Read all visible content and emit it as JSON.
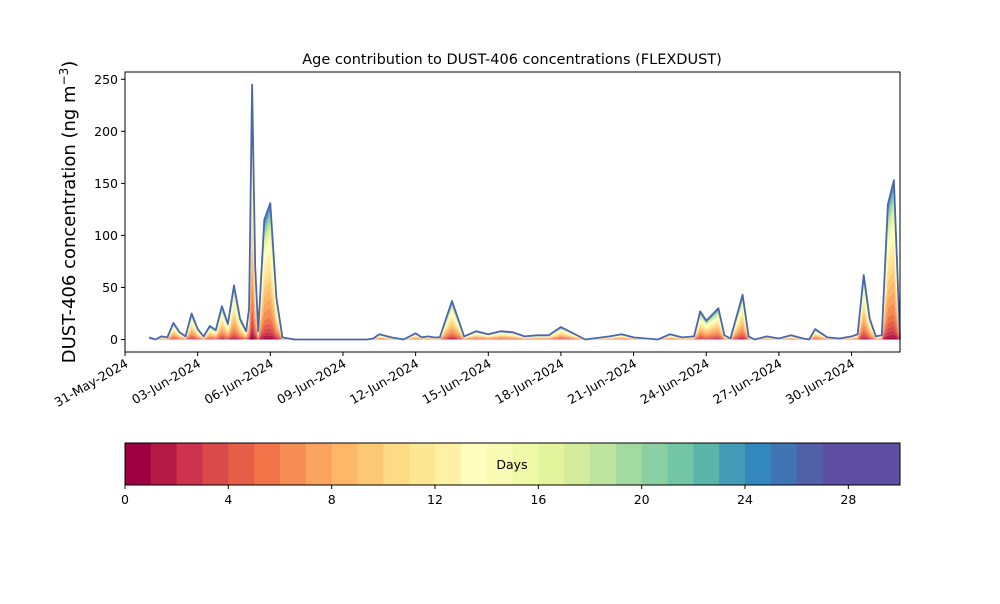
{
  "chart_data": {
    "type": "area",
    "title": "Age contribution to DUST-406 concentrations (FLEXDUST)",
    "ylabel_main": "DUST-406 concentration (ng m",
    "ylabel_sup": "−3",
    "ylabel_close": ")",
    "xlabel": "",
    "stacked": true,
    "grid": false,
    "x_start": "2024-05-31",
    "x_end": "2024-07-02",
    "ylim": [
      -12,
      257
    ],
    "yticks": [
      0,
      50,
      100,
      150,
      200,
      250
    ],
    "xtick_labels": [
      "31-May-2024",
      "03-Jun-2024",
      "06-Jun-2024",
      "09-Jun-2024",
      "12-Jun-2024",
      "15-Jun-2024",
      "18-Jun-2024",
      "21-Jun-2024",
      "24-Jun-2024",
      "27-Jun-2024",
      "30-Jun-2024"
    ],
    "x": [
      "2024-06-01 00:00",
      "2024-06-01 06:00",
      "2024-06-01 12:00",
      "2024-06-01 18:00",
      "2024-06-02 00:00",
      "2024-06-02 06:00",
      "2024-06-02 12:00",
      "2024-06-02 18:00",
      "2024-06-03 00:00",
      "2024-06-03 06:00",
      "2024-06-03 12:00",
      "2024-06-03 18:00",
      "2024-06-04 00:00",
      "2024-06-04 06:00",
      "2024-06-04 12:00",
      "2024-06-04 18:00",
      "2024-06-05 00:00",
      "2024-06-05 03:00",
      "2024-06-05 06:00",
      "2024-06-05 09:00",
      "2024-06-05 12:00",
      "2024-06-05 18:00",
      "2024-06-06 00:00",
      "2024-06-06 06:00",
      "2024-06-06 12:00",
      "2024-06-07 00:00",
      "2024-06-08 00:00",
      "2024-06-08 12:00",
      "2024-06-09 00:00",
      "2024-06-10 00:00",
      "2024-06-10 06:00",
      "2024-06-10 12:00",
      "2024-06-11 00:00",
      "2024-06-11 12:00",
      "2024-06-12 00:00",
      "2024-06-12 06:00",
      "2024-06-12 12:00",
      "2024-06-12 18:00",
      "2024-06-13 00:00",
      "2024-06-13 12:00",
      "2024-06-14 00:00",
      "2024-06-14 12:00",
      "2024-06-15 00:00",
      "2024-06-15 12:00",
      "2024-06-16 00:00",
      "2024-06-16 12:00",
      "2024-06-17 00:00",
      "2024-06-17 12:00",
      "2024-06-18 00:00",
      "2024-06-19 00:00",
      "2024-06-20 00:00",
      "2024-06-20 12:00",
      "2024-06-21 00:00",
      "2024-06-22 00:00",
      "2024-06-22 12:00",
      "2024-06-23 00:00",
      "2024-06-23 12:00",
      "2024-06-23 18:00",
      "2024-06-24 00:00",
      "2024-06-24 12:00",
      "2024-06-24 18:00",
      "2024-06-25 00:00",
      "2024-06-25 12:00",
      "2024-06-25 18:00",
      "2024-06-26 00:00",
      "2024-06-26 12:00",
      "2024-06-27 00:00",
      "2024-06-27 12:00",
      "2024-06-28 00:00",
      "2024-06-28 06:00",
      "2024-06-28 12:00",
      "2024-06-29 00:00",
      "2024-06-29 12:00",
      "2024-06-30 00:00",
      "2024-06-30 06:00",
      "2024-06-30 12:00",
      "2024-06-30 18:00",
      "2024-07-01 00:00",
      "2024-07-01 06:00",
      "2024-07-01 12:00",
      "2024-07-01 18:00",
      "2024-07-02 00:00"
    ],
    "total": [
      2,
      0,
      3,
      2,
      16,
      7,
      3,
      25,
      10,
      3,
      13,
      9,
      32,
      15,
      52,
      20,
      8,
      30,
      245,
      70,
      8,
      115,
      131,
      40,
      2,
      0,
      0,
      0,
      0,
      0,
      1,
      5,
      2,
      0,
      6,
      2,
      3,
      2,
      2,
      37,
      3,
      8,
      5,
      8,
      7,
      3,
      4,
      4,
      12,
      0,
      3,
      5,
      2,
      0,
      5,
      2,
      3,
      27,
      18,
      30,
      4,
      1,
      43,
      3,
      0,
      3,
      1,
      4,
      1,
      0,
      10,
      2,
      1,
      3,
      5,
      62,
      20,
      3,
      4,
      130,
      153,
      0
    ],
    "colorbar": {
      "label": "Days",
      "ticks": [
        0,
        4,
        8,
        12,
        16,
        20,
        24,
        28
      ],
      "min": 0,
      "max": 30,
      "colors": [
        "#9e0142",
        "#b61a47",
        "#cd334c",
        "#db4a4a",
        "#e65e47",
        "#f07448",
        "#f68d54",
        "#fba45f",
        "#fdb768",
        "#fdc876",
        "#fed986",
        "#fee794",
        "#fff0a6",
        "#fffebe",
        "#f9fcb5",
        "#eff8a6",
        "#e4f49c",
        "#d2ec9b",
        "#bde5a0",
        "#a3da9f",
        "#8bd0a3",
        "#72c6a5",
        "#5ab4a9",
        "#439ab4",
        "#3288bd",
        "#4074b3",
        "#5060a6",
        "#5e4fa2",
        "#5e4fa2",
        "#5e4fa2"
      ]
    }
  }
}
